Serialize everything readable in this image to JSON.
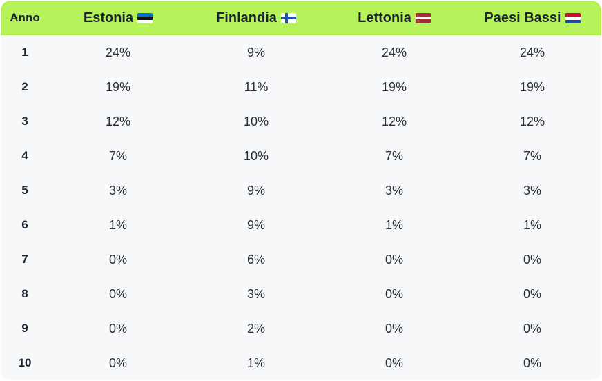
{
  "header": {
    "year_label": "Anno",
    "countries": [
      {
        "label": "Estonia",
        "flag": "estonia-flag-icon"
      },
      {
        "label": "Finlandia",
        "flag": "finland-flag-icon"
      },
      {
        "label": "Lettonia",
        "flag": "latvia-flag-icon"
      },
      {
        "label": "Paesi Bassi",
        "flag": "netherlands-flag-icon"
      }
    ]
  },
  "rows": [
    {
      "year": "1",
      "values": [
        "24%",
        "9%",
        "24%",
        "24%"
      ]
    },
    {
      "year": "2",
      "values": [
        "19%",
        "11%",
        "19%",
        "19%"
      ]
    },
    {
      "year": "3",
      "values": [
        "12%",
        "10%",
        "12%",
        "12%"
      ]
    },
    {
      "year": "4",
      "values": [
        "7%",
        "10%",
        "7%",
        "7%"
      ]
    },
    {
      "year": "5",
      "values": [
        "3%",
        "9%",
        "3%",
        "3%"
      ]
    },
    {
      "year": "6",
      "values": [
        "1%",
        "9%",
        "1%",
        "1%"
      ]
    },
    {
      "year": "7",
      "values": [
        "0%",
        "6%",
        "0%",
        "0%"
      ]
    },
    {
      "year": "8",
      "values": [
        "0%",
        "3%",
        "0%",
        "0%"
      ]
    },
    {
      "year": "9",
      "values": [
        "0%",
        "2%",
        "0%",
        "0%"
      ]
    },
    {
      "year": "10",
      "values": [
        "0%",
        "1%",
        "0%",
        "0%"
      ]
    }
  ],
  "colors": {
    "header_bg": "#b6f25a",
    "table_bg": "#f7f8fa",
    "text": "#1e2433"
  }
}
